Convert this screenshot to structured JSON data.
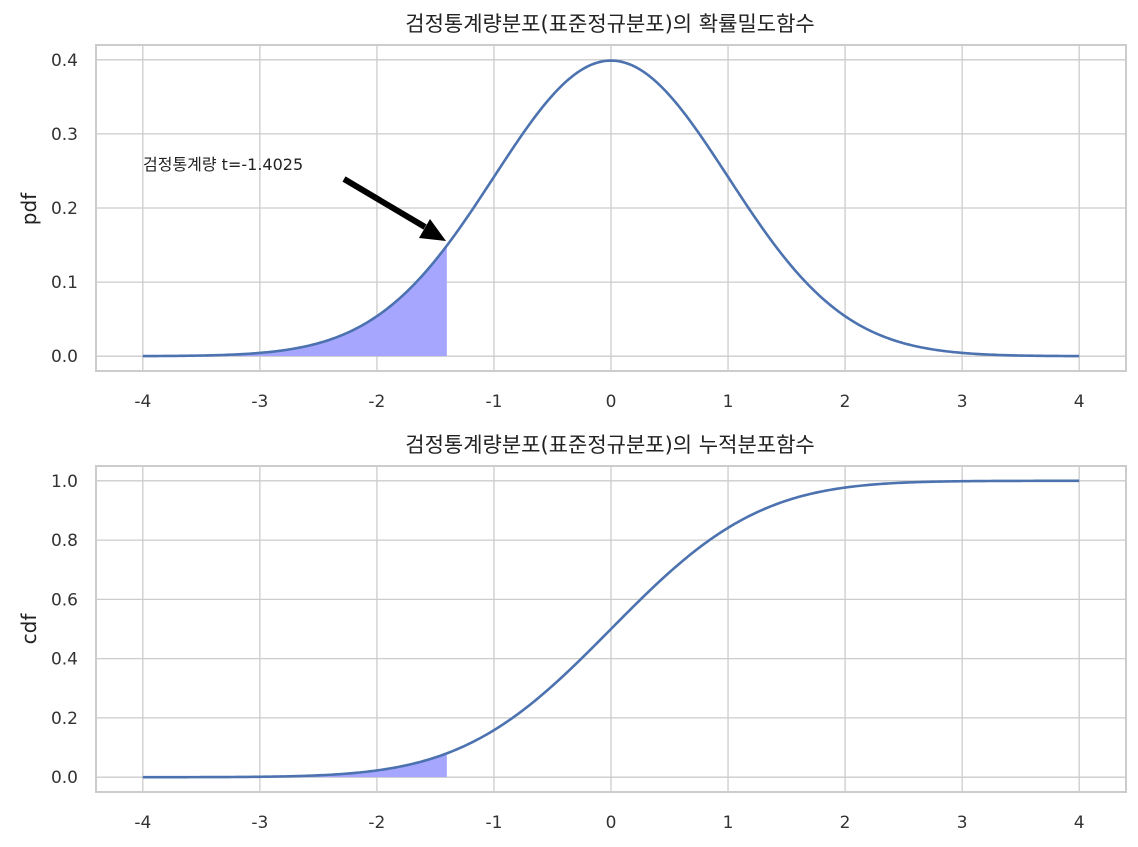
{
  "chart_data": [
    {
      "type": "line",
      "title": "검정통계량분포(표준정규분포)의 확률밀도함수",
      "xlabel": "",
      "ylabel": "pdf",
      "xlim": [
        -4.4,
        4.4
      ],
      "ylim": [
        -0.02,
        0.42
      ],
      "x_ticks": [
        "-4",
        "-3",
        "-2",
        "-1",
        "0",
        "1",
        "2",
        "3",
        "4"
      ],
      "y_ticks": [
        "0.0",
        "0.1",
        "0.2",
        "0.3",
        "0.4"
      ],
      "grid": true,
      "series": [
        {
          "function": "normal_pdf",
          "x": [
            -4,
            -3.5,
            -3,
            -2.5,
            -2,
            -1.5,
            -1,
            -0.5,
            0,
            0.5,
            1,
            1.5,
            2,
            2.5,
            3,
            3.5,
            4
          ],
          "values": [
            0.0001,
            0.0009,
            0.0044,
            0.0175,
            0.054,
            0.1295,
            0.242,
            0.3521,
            0.3989,
            0.3521,
            0.242,
            0.1295,
            0.054,
            0.0175,
            0.0044,
            0.0009,
            0.0001
          ],
          "color": "#4c72b0"
        }
      ],
      "shaded_region": {
        "from": -4,
        "to": -1.4025,
        "color": "#a6a6ff"
      },
      "annotation": {
        "text": "검정통계량 t=-1.4025",
        "point": [
          -1.4025,
          0.1492
        ],
        "text_position": [
          -4,
          0.25
        ],
        "arrow": true
      }
    },
    {
      "type": "line",
      "title": "검정통계량분포(표준정규분포)의 누적분포함수",
      "xlabel": "",
      "ylabel": "cdf",
      "xlim": [
        -4.4,
        4.4
      ],
      "ylim": [
        -0.05,
        1.05
      ],
      "x_ticks": [
        "-4",
        "-3",
        "-2",
        "-1",
        "0",
        "1",
        "2",
        "3",
        "4"
      ],
      "y_ticks": [
        "0.0",
        "0.2",
        "0.4",
        "0.6",
        "0.8",
        "1.0"
      ],
      "grid": true,
      "series": [
        {
          "function": "normal_cdf",
          "x": [
            -4,
            -3.5,
            -3,
            -2.5,
            -2,
            -1.5,
            -1,
            -0.5,
            0,
            0.5,
            1,
            1.5,
            2,
            2.5,
            3,
            3.5,
            4
          ],
          "values": [
            0.0,
            0.0002,
            0.0013,
            0.0062,
            0.0228,
            0.0668,
            0.1587,
            0.3085,
            0.5,
            0.6915,
            0.8413,
            0.9332,
            0.9772,
            0.9938,
            0.9987,
            0.9998,
            1.0
          ],
          "color": "#4c72b0"
        }
      ],
      "shaded_region": {
        "from": -4,
        "to": -1.4025,
        "color": "#a6a6ff"
      }
    }
  ]
}
